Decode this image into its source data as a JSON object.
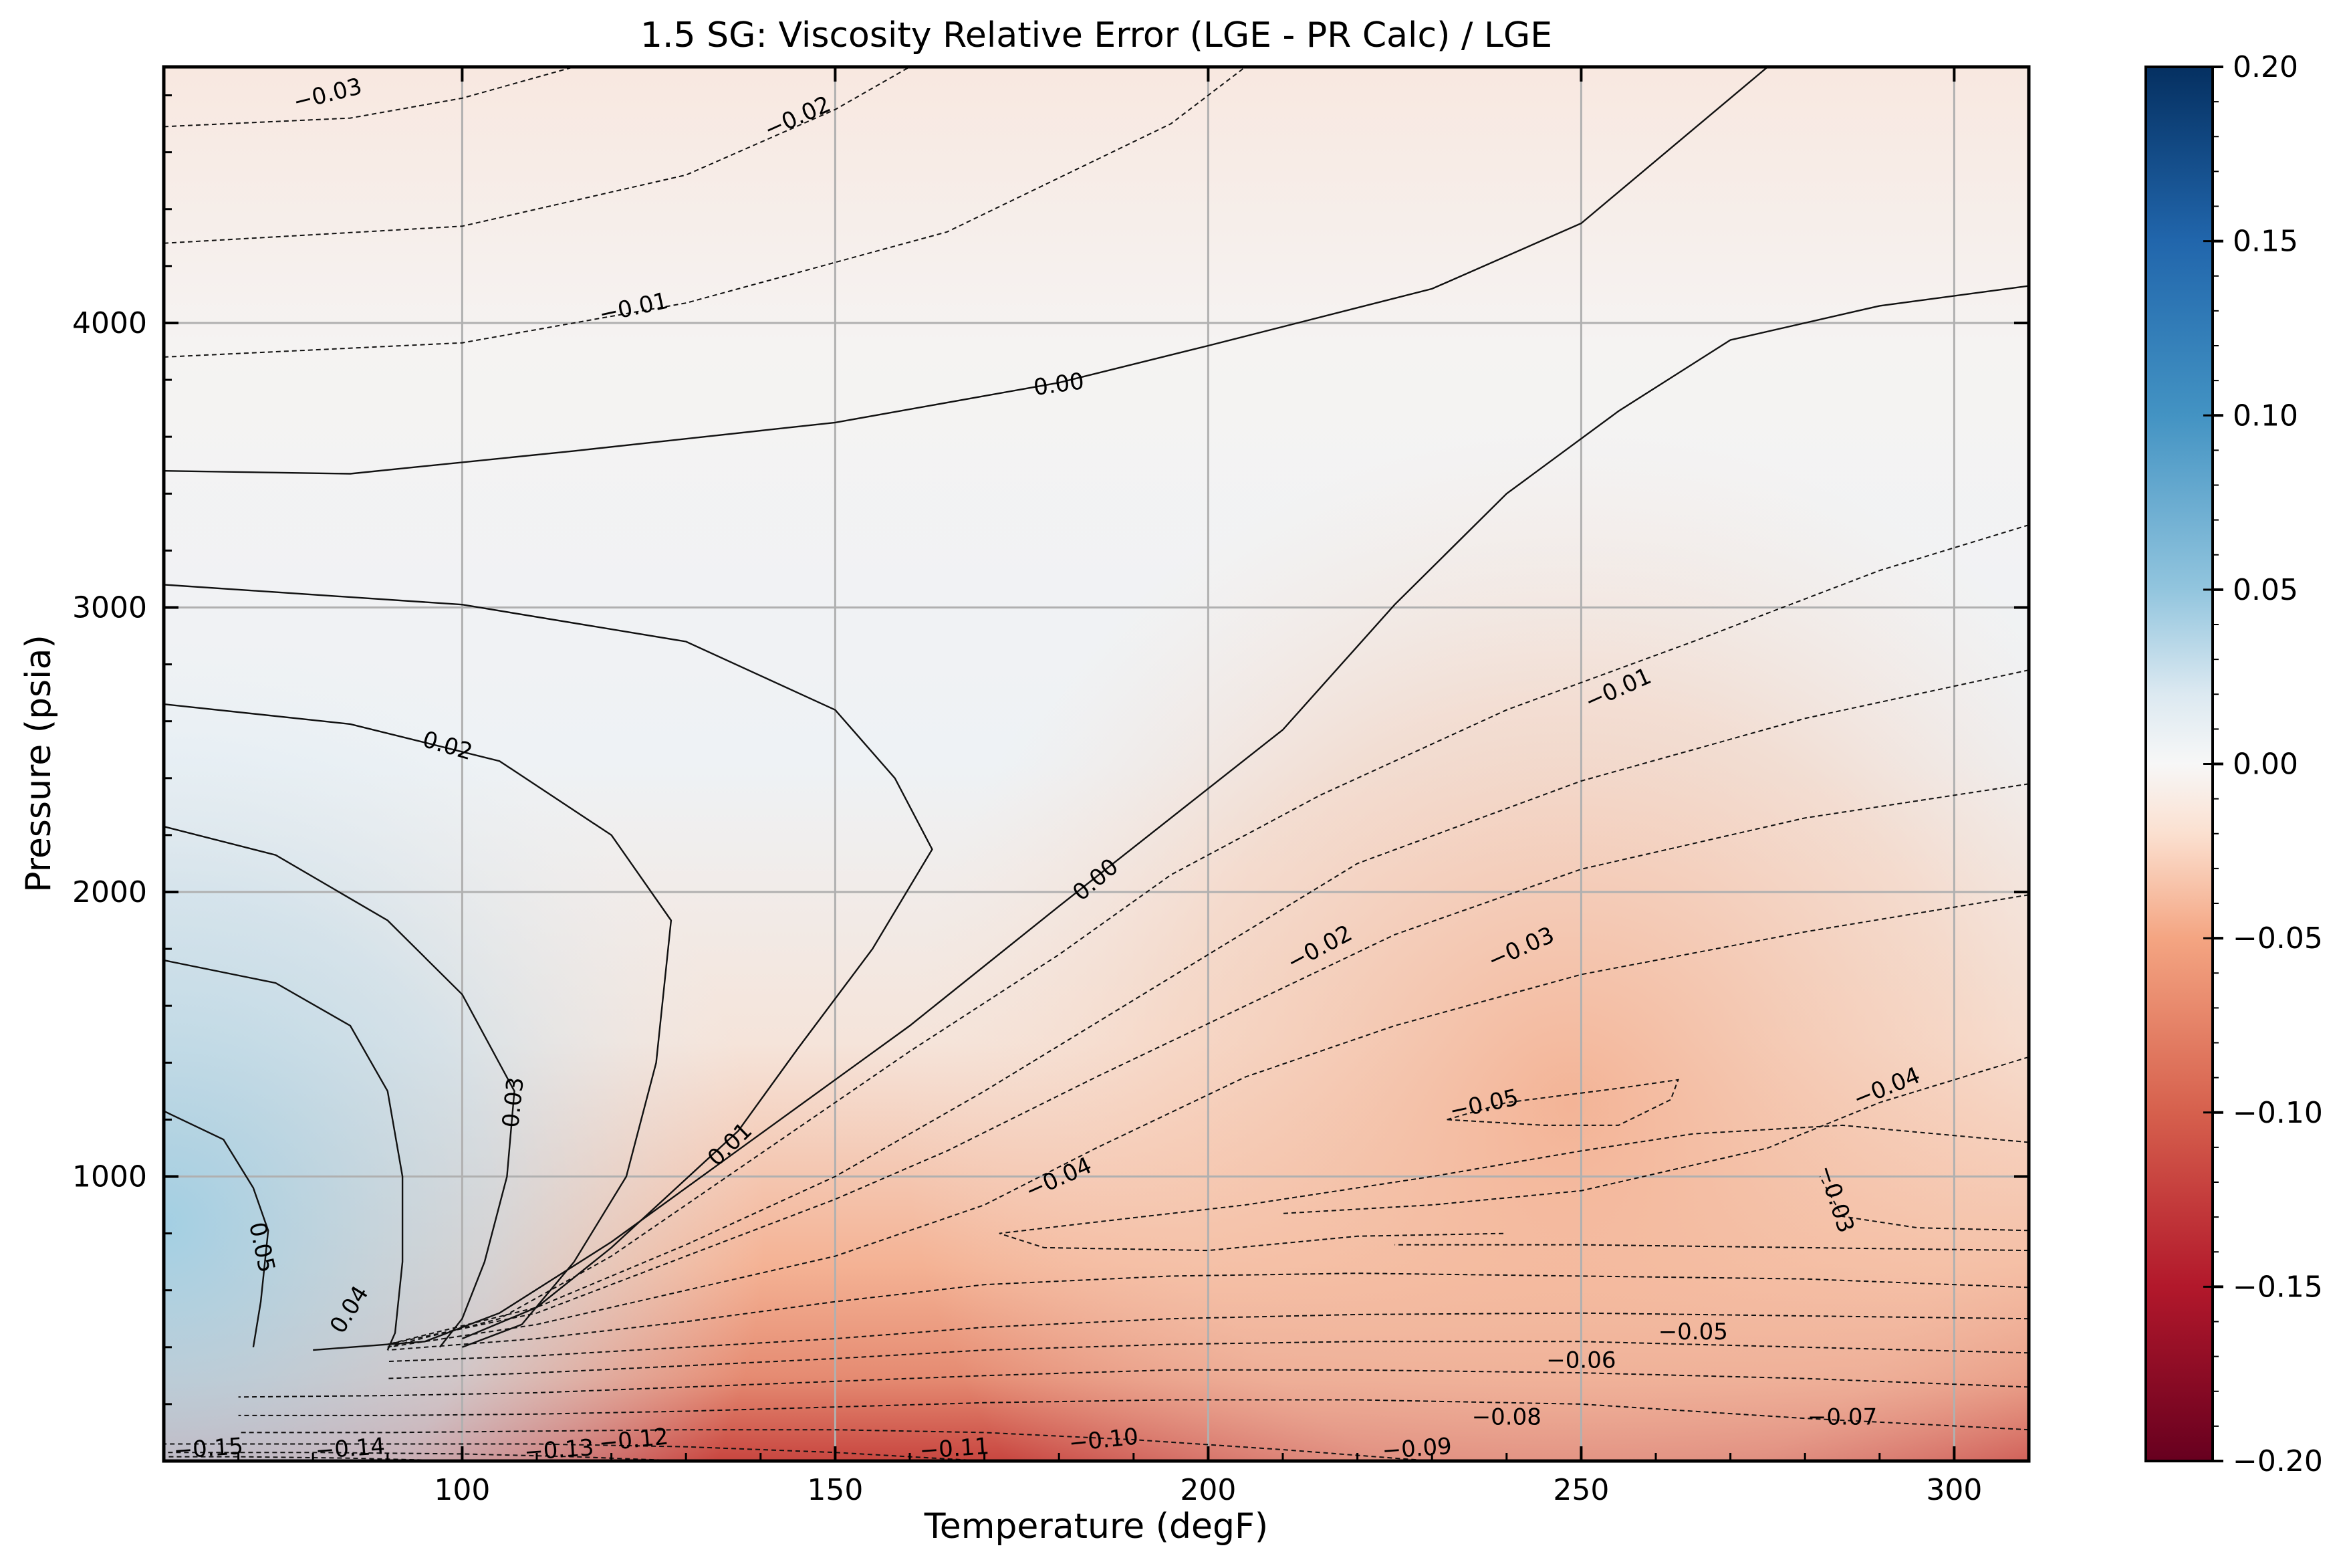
{
  "chart_data": {
    "type": "heatmap",
    "title": "1.5 SG: Viscosity Relative Error (LGE - PR Calc) / LGE",
    "xlabel": "Temperature (degF)",
    "ylabel": "Pressure (psia)",
    "xlim": [
      60,
      310
    ],
    "ylim": [
      0,
      4900
    ],
    "xticks": [
      "100",
      "150",
      "200",
      "250",
      "300"
    ],
    "yticks": [
      "1000",
      "2000",
      "3000",
      "4000"
    ],
    "grid": true,
    "colormap": "RdBu",
    "colorbar": {
      "min": -0.2,
      "max": 0.2,
      "ticks": [
        "0.20",
        "0.15",
        "0.10",
        "0.05",
        "0.00",
        "−0.05",
        "−0.10",
        "−0.15",
        "−0.20"
      ],
      "colors": {
        "-0.20": "#67001f",
        "-0.15": "#b2182b",
        "-0.10": "#d6604d",
        "-0.05": "#f4a582",
        "-0.02": "#fbe0d0",
        "0.00": "#f7f7f7",
        "0.02": "#dce9f1",
        "0.05": "#92c5de",
        "0.10": "#4393c3",
        "0.15": "#2166ac",
        "0.20": "#053061"
      }
    },
    "contour_lines": [
      {
        "level": "0.05",
        "points": [
          [
            60,
            1230
          ],
          [
            68,
            1130
          ],
          [
            72,
            960
          ],
          [
            74,
            810
          ],
          [
            73,
            560
          ],
          [
            72,
            400
          ]
        ]
      },
      {
        "level": "0.04",
        "points": [
          [
            60,
            1760
          ],
          [
            75,
            1680
          ],
          [
            85,
            1530
          ],
          [
            90,
            1300
          ],
          [
            92,
            1000
          ],
          [
            92,
            700
          ],
          [
            91,
            450
          ],
          [
            90,
            390
          ]
        ]
      },
      {
        "level": "0.03",
        "points": [
          [
            60,
            2230
          ],
          [
            75,
            2130
          ],
          [
            90,
            1900
          ],
          [
            100,
            1640
          ],
          [
            107,
            1300
          ],
          [
            106,
            1000
          ],
          [
            103,
            700
          ],
          [
            100,
            500
          ],
          [
            97,
            400
          ]
        ]
      },
      {
        "level": "0.02",
        "points": [
          [
            60,
            2660
          ],
          [
            85,
            2590
          ],
          [
            105,
            2460
          ],
          [
            120,
            2200
          ],
          [
            128,
            1900
          ],
          [
            126,
            1400
          ],
          [
            122,
            1000
          ],
          [
            115,
            700
          ],
          [
            108,
            480
          ],
          [
            100,
            400
          ]
        ]
      },
      {
        "level": "0.01",
        "points": [
          [
            60,
            3080
          ],
          [
            100,
            3010
          ],
          [
            130,
            2880
          ],
          [
            150,
            2640
          ],
          [
            158,
            2400
          ],
          [
            163,
            2150
          ],
          [
            155,
            1800
          ],
          [
            145,
            1450
          ],
          [
            137,
            1160
          ],
          [
            120,
            750
          ],
          [
            110,
            540
          ],
          [
            100,
            430
          ]
        ]
      },
      {
        "level": "0.00",
        "points": [
          [
            60,
            3480
          ],
          [
            85,
            3470
          ],
          [
            115,
            3550
          ],
          [
            150,
            3650
          ],
          [
            180,
            3790
          ],
          [
            200,
            3920
          ],
          [
            230,
            4120
          ],
          [
            250,
            4350
          ],
          [
            275,
            4900
          ]
        ]
      },
      {
        "level": "0.00",
        "points": [
          [
            310,
            4130
          ],
          [
            290,
            4060
          ],
          [
            270,
            3940
          ],
          [
            255,
            3690
          ],
          [
            240,
            3400
          ],
          [
            225,
            3010
          ],
          [
            210,
            2570
          ],
          [
            195,
            2260
          ],
          [
            180,
            1950
          ],
          [
            160,
            1530
          ],
          [
            140,
            1150
          ],
          [
            120,
            770
          ],
          [
            105,
            520
          ],
          [
            95,
            420
          ],
          [
            80,
            390
          ]
        ]
      },
      {
        "level": "-0.01",
        "points": [
          [
            60,
            3880
          ],
          [
            100,
            3930
          ],
          [
            130,
            4070
          ],
          [
            165,
            4320
          ],
          [
            195,
            4700
          ],
          [
            205,
            4900
          ]
        ]
      },
      {
        "level": "-0.01",
        "points": [
          [
            310,
            3290
          ],
          [
            290,
            3130
          ],
          [
            265,
            2880
          ],
          [
            240,
            2640
          ],
          [
            215,
            2340
          ],
          [
            195,
            2060
          ],
          [
            180,
            1780
          ],
          [
            160,
            1440
          ],
          [
            140,
            1080
          ],
          [
            120,
            720
          ],
          [
            105,
            500
          ],
          [
            90,
            400
          ]
        ]
      },
      {
        "level": "-0.02",
        "points": [
          [
            60,
            4280
          ],
          [
            100,
            4340
          ],
          [
            130,
            4520
          ],
          [
            150,
            4750
          ],
          [
            160,
            4900
          ]
        ]
      },
      {
        "level": "-0.02",
        "points": [
          [
            310,
            2780
          ],
          [
            280,
            2610
          ],
          [
            250,
            2390
          ],
          [
            220,
            2100
          ],
          [
            205,
            1860
          ],
          [
            190,
            1620
          ],
          [
            170,
            1300
          ],
          [
            150,
            1000
          ],
          [
            130,
            760
          ],
          [
            110,
            540
          ],
          [
            90,
            410
          ]
        ]
      },
      {
        "level": "-0.03",
        "points": [
          [
            60,
            4690
          ],
          [
            85,
            4720
          ],
          [
            100,
            4790
          ],
          [
            115,
            4900
          ]
        ]
      },
      {
        "level": "-0.03",
        "points": [
          [
            310,
            2380
          ],
          [
            280,
            2260
          ],
          [
            250,
            2080
          ],
          [
            225,
            1850
          ],
          [
            205,
            1600
          ],
          [
            185,
            1350
          ],
          [
            165,
            1090
          ],
          [
            150,
            920
          ],
          [
            130,
            720
          ],
          [
            110,
            520
          ],
          [
            90,
            410
          ]
        ]
      },
      {
        "level": "-0.03",
        "points": [
          [
            310,
            810
          ],
          [
            295,
            820
          ],
          [
            285,
            860
          ],
          [
            282,
            1000
          ]
        ]
      },
      {
        "level": "-0.04",
        "points": [
          [
            310,
            1420
          ],
          [
            290,
            1260
          ],
          [
            275,
            1100
          ],
          [
            250,
            950
          ],
          [
            230,
            900
          ],
          [
            210,
            870
          ]
        ]
      },
      {
        "level": "-0.04",
        "points": [
          [
            310,
            1990
          ],
          [
            280,
            1860
          ],
          [
            250,
            1710
          ],
          [
            225,
            1530
          ],
          [
            205,
            1350
          ],
          [
            185,
            1100
          ],
          [
            170,
            900
          ],
          [
            150,
            720
          ],
          [
            130,
            600
          ],
          [
            110,
            480
          ],
          [
            90,
            400
          ]
        ]
      },
      {
        "level": "-0.04",
        "points": [
          [
            310,
            1120
          ],
          [
            285,
            1180
          ],
          [
            265,
            1150
          ],
          [
            250,
            1090
          ],
          [
            230,
            1000
          ],
          [
            205,
            900
          ],
          [
            185,
            840
          ],
          [
            172,
            800
          ],
          [
            178,
            750
          ],
          [
            200,
            740
          ],
          [
            220,
            790
          ],
          [
            240,
            800
          ]
        ]
      },
      {
        "level": "-0.05",
        "points": [
          [
            310,
            740
          ],
          [
            280,
            750
          ],
          [
            250,
            760
          ],
          [
            225,
            760
          ]
        ]
      },
      {
        "level": "-0.05",
        "points": [
          [
            310,
            610
          ],
          [
            280,
            640
          ],
          [
            250,
            650
          ],
          [
            220,
            660
          ],
          [
            195,
            650
          ],
          [
            170,
            620
          ],
          [
            150,
            560
          ],
          [
            130,
            490
          ],
          [
            110,
            430
          ],
          [
            90,
            390
          ]
        ]
      },
      {
        "level": "-0.05",
        "points": [
          [
            232,
            1200
          ],
          [
            240,
            1260
          ],
          [
            255,
            1310
          ],
          [
            263,
            1340
          ],
          [
            262,
            1270
          ],
          [
            255,
            1180
          ],
          [
            245,
            1180
          ],
          [
            232,
            1200
          ]
        ]
      },
      {
        "level": "-0.06",
        "points": [
          [
            310,
            500
          ],
          [
            280,
            510
          ],
          [
            250,
            520
          ],
          [
            220,
            515
          ],
          [
            195,
            500
          ],
          [
            170,
            470
          ],
          [
            150,
            430
          ],
          [
            130,
            400
          ],
          [
            110,
            370
          ],
          [
            90,
            350
          ]
        ]
      },
      {
        "level": "-0.07",
        "points": [
          [
            310,
            380
          ],
          [
            280,
            400
          ],
          [
            250,
            420
          ],
          [
            220,
            420
          ],
          [
            195,
            410
          ],
          [
            170,
            390
          ],
          [
            150,
            360
          ],
          [
            130,
            335
          ],
          [
            110,
            310
          ],
          [
            90,
            290
          ]
        ]
      },
      {
        "level": "-0.08",
        "points": [
          [
            310,
            260
          ],
          [
            280,
            290
          ],
          [
            250,
            310
          ],
          [
            220,
            320
          ],
          [
            195,
            320
          ],
          [
            170,
            300
          ],
          [
            150,
            280
          ],
          [
            130,
            260
          ],
          [
            110,
            240
          ],
          [
            90,
            230
          ],
          [
            70,
            225
          ]
        ]
      },
      {
        "level": "-0.09",
        "points": [
          [
            310,
            110
          ],
          [
            280,
            150
          ],
          [
            250,
            200
          ],
          [
            220,
            215
          ],
          [
            195,
            215
          ],
          [
            170,
            205
          ],
          [
            150,
            190
          ],
          [
            130,
            175
          ],
          [
            110,
            165
          ],
          [
            90,
            160
          ],
          [
            70,
            160
          ]
        ]
      },
      {
        "level": "-0.10",
        "points": [
          [
            230,
            0
          ],
          [
            210,
            40
          ],
          [
            190,
            75
          ],
          [
            170,
            100
          ],
          [
            150,
            110
          ],
          [
            130,
            110
          ],
          [
            110,
            105
          ],
          [
            90,
            100
          ],
          [
            70,
            100
          ]
        ]
      },
      {
        "level": "-0.11",
        "points": [
          [
            170,
            0
          ],
          [
            150,
            30
          ],
          [
            130,
            50
          ],
          [
            110,
            60
          ],
          [
            90,
            60
          ],
          [
            70,
            60
          ],
          [
            60,
            60
          ]
        ]
      },
      {
        "level": "-0.12",
        "points": [
          [
            130,
            0
          ],
          [
            115,
            15
          ],
          [
            100,
            25
          ],
          [
            80,
            30
          ],
          [
            60,
            30
          ]
        ]
      },
      {
        "level": "-0.13",
        "points": [
          [
            100,
            0
          ],
          [
            85,
            10
          ],
          [
            70,
            15
          ],
          [
            60,
            15
          ]
        ]
      }
    ],
    "contour_labels": [
      {
        "text": "−0.03",
        "x": 82,
        "y": 4800,
        "angle": -14
      },
      {
        "text": "−0.02",
        "x": 145,
        "y": 4720,
        "angle": -24
      },
      {
        "text": "−0.01",
        "x": 123,
        "y": 4050,
        "angle": -12
      },
      {
        "text": "0.00",
        "x": 180,
        "y": 3780,
        "angle": -8
      },
      {
        "text": "0.02",
        "x": 98,
        "y": 2510,
        "angle": 16
      },
      {
        "text": "0.00",
        "x": 185,
        "y": 2040,
        "angle": -40
      },
      {
        "text": "−0.02",
        "x": 215,
        "y": 1800,
        "angle": -28
      },
      {
        "text": "−0.03",
        "x": 242,
        "y": 1800,
        "angle": -24
      },
      {
        "text": "−0.01",
        "x": 255,
        "y": 2710,
        "angle": -24
      },
      {
        "text": "0.03",
        "x": 107,
        "y": 1260,
        "angle": -84
      },
      {
        "text": "0.01",
        "x": 136,
        "y": 1110,
        "angle": -44
      },
      {
        "text": "−0.04",
        "x": 180,
        "y": 990,
        "angle": -24
      },
      {
        "text": "−0.05",
        "x": 237,
        "y": 1250,
        "angle": -12
      },
      {
        "text": "−0.04",
        "x": 291,
        "y": 1310,
        "angle": -22
      },
      {
        "text": "−0.03",
        "x": 284,
        "y": 920,
        "angle": 72
      },
      {
        "text": "0.05",
        "x": 73,
        "y": 750,
        "angle": 78
      },
      {
        "text": "0.04",
        "x": 85,
        "y": 530,
        "angle": -58
      },
      {
        "text": "−0.05",
        "x": 265,
        "y": 450,
        "angle": 0
      },
      {
        "text": "−0.06",
        "x": 250,
        "y": 350,
        "angle": 0
      },
      {
        "text": "−0.08",
        "x": 240,
        "y": 150,
        "angle": 0
      },
      {
        "text": "−0.07",
        "x": 285,
        "y": 150,
        "angle": 0
      },
      {
        "text": "−0.09",
        "x": 228,
        "y": 40,
        "angle": -4
      },
      {
        "text": "−0.10",
        "x": 186,
        "y": 70,
        "angle": -6
      },
      {
        "text": "−0.11",
        "x": 166,
        "y": 40,
        "angle": -4
      },
      {
        "text": "−0.12",
        "x": 123,
        "y": 70,
        "angle": -6
      },
      {
        "text": "−0.13",
        "x": 113,
        "y": 35,
        "angle": -4
      },
      {
        "text": "−0.14",
        "x": 85,
        "y": 40,
        "angle": -4
      },
      {
        "text": "−0.15",
        "x": 66,
        "y": 40,
        "angle": -4
      }
    ]
  }
}
